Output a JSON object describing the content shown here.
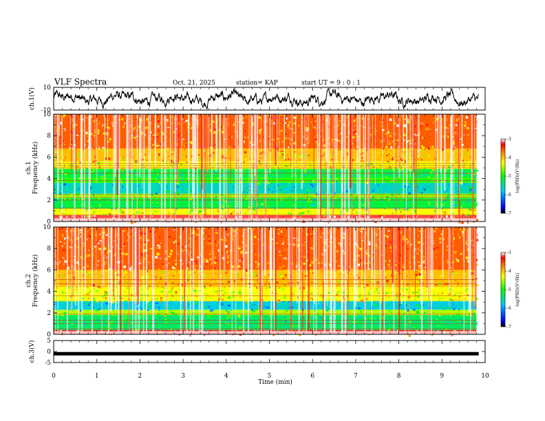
{
  "header": {
    "title": "VLF Spectra",
    "date": "Oct. 21, 2025",
    "station": "station= KAP",
    "start": "start  UT =   9 : 0  : 1"
  },
  "colorbar": {
    "label": "log(PSD)(V²/Hz)",
    "ticks": [
      "-3",
      "-4",
      "-5",
      "-6",
      "-7"
    ],
    "range": [
      -7,
      -3
    ],
    "colors": [
      "#000000",
      "#0000ff",
      "#00c8ff",
      "#00ff00",
      "#ffff00",
      "#ff8000",
      "#ff0000",
      "#ffffff"
    ]
  },
  "chart_data": [
    {
      "type": "line",
      "name": "ch1-waveform",
      "ylabel": "ch.1(V)",
      "ylim": [
        -10,
        10
      ],
      "yticks": [
        "10",
        "-10"
      ],
      "xlim": [
        0,
        10
      ],
      "description_values": {
        "mean": 0,
        "typical_min": -6,
        "typical_max": 4
      }
    },
    {
      "type": "heatmap",
      "name": "ch1-spectrogram",
      "ylabel": "ch.1\nFrequency (kHz)",
      "ylim": [
        0,
        10
      ],
      "yticks": [
        "10",
        "8",
        "6",
        "4",
        "2",
        "0"
      ],
      "xlim": [
        0,
        9.8
      ],
      "bands_khz": [
        {
          "from": 0,
          "to": 0.6,
          "level": -3.2
        },
        {
          "from": 0.6,
          "to": 1.2,
          "level": -4.3
        },
        {
          "from": 1.2,
          "to": 2.2,
          "level": -5.2
        },
        {
          "from": 2.2,
          "to": 2.6,
          "level": -4.6
        },
        {
          "from": 2.6,
          "to": 3.6,
          "level": -5.6
        },
        {
          "from": 3.6,
          "to": 4.1,
          "level": -4.9
        },
        {
          "from": 4.1,
          "to": 4.9,
          "level": -5.2
        },
        {
          "from": 4.9,
          "to": 5.6,
          "level": -4.3
        },
        {
          "from": 5.6,
          "to": 6.8,
          "level": -4.0
        },
        {
          "from": 6.8,
          "to": 10,
          "level": -3.6
        }
      ],
      "lines_khz": [
        0.25,
        0.6,
        1.25,
        2.0,
        2.25,
        2.5,
        3.8,
        4.5,
        5.0,
        5.2,
        5.4
      ]
    },
    {
      "type": "heatmap",
      "name": "ch2-spectrogram",
      "ylabel": "ch.2\nFrequency (kHz)",
      "ylim": [
        0,
        10
      ],
      "yticks": [
        "10",
        "8",
        "6",
        "4",
        "2",
        "0"
      ],
      "xlim": [
        0,
        9.8
      ],
      "bands_khz": [
        {
          "from": 0,
          "to": 0.4,
          "level": -3.3
        },
        {
          "from": 0.4,
          "to": 1.8,
          "level": -5.3
        },
        {
          "from": 1.8,
          "to": 2.3,
          "level": -4.5
        },
        {
          "from": 2.3,
          "to": 3.1,
          "level": -5.7
        },
        {
          "from": 3.1,
          "to": 4.4,
          "level": -4.3
        },
        {
          "from": 4.4,
          "to": 6.0,
          "level": -4.0
        },
        {
          "from": 6.0,
          "to": 10,
          "level": -3.6
        }
      ],
      "lines_khz": [
        0.5,
        1.0,
        1.3,
        1.9,
        3.6,
        4.7,
        5.1
      ]
    },
    {
      "type": "line",
      "name": "ch3-waveform",
      "ylabel": "ch.3(V)",
      "ylim": [
        -5,
        5
      ],
      "yticks": [
        "5",
        "0",
        "-5"
      ],
      "xlim": [
        0,
        10
      ],
      "constant_value": -1
    }
  ],
  "xaxis": {
    "label": "Time (min)",
    "ticks": [
      "0",
      "1",
      "2",
      "3",
      "4",
      "5",
      "6",
      "7",
      "8",
      "9",
      "10"
    ]
  }
}
